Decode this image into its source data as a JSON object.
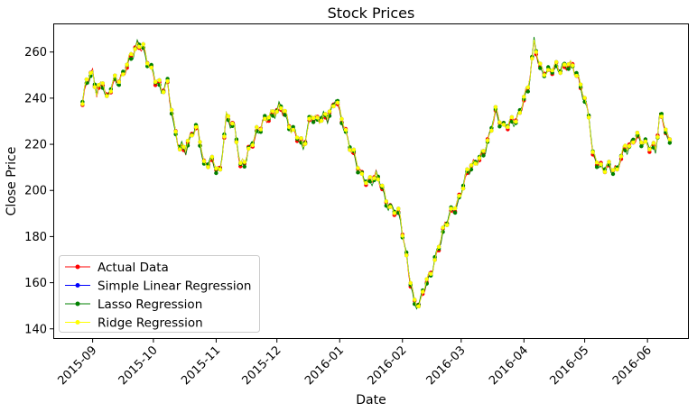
{
  "chart_data": {
    "type": "line",
    "title": "Stock Prices",
    "xlabel": "Date",
    "ylabel": "Close Price",
    "xlim": [
      "2015-08-13",
      "2016-06-21"
    ],
    "ylim": [
      136,
      272
    ],
    "grid": false,
    "legend_position": "bottom-left",
    "x_ticks": [
      "2015-09",
      "2015-10",
      "2015-11",
      "2015-12",
      "2016-01",
      "2016-02",
      "2016-03",
      "2016-04",
      "2016-05",
      "2016-06"
    ],
    "y_ticks": [
      140,
      160,
      180,
      200,
      220,
      240,
      260
    ],
    "series": [
      {
        "name": "Actual Data",
        "color": "#ff0000"
      },
      {
        "name": "Simple Linear Regression",
        "color": "#0000ff"
      },
      {
        "name": "Lasso Regression",
        "color": "#008000"
      },
      {
        "name": "Ridge Regression",
        "color": "#ffff00"
      }
    ],
    "anchors": [
      [
        "2015-08-27",
        237
      ],
      [
        "2015-08-29",
        246
      ],
      [
        "2015-09-01",
        251
      ],
      [
        "2015-09-03",
        242
      ],
      [
        "2015-09-06",
        248
      ],
      [
        "2015-09-08",
        240
      ],
      [
        "2015-09-12",
        246
      ],
      [
        "2015-09-16",
        251
      ],
      [
        "2015-09-20",
        258
      ],
      [
        "2015-09-23",
        262
      ],
      [
        "2015-09-26",
        261
      ],
      [
        "2015-09-29",
        256
      ],
      [
        "2015-10-02",
        247
      ],
      [
        "2015-10-05",
        243
      ],
      [
        "2015-10-08",
        246
      ],
      [
        "2015-10-11",
        230
      ],
      [
        "2015-10-14",
        218
      ],
      [
        "2015-10-17",
        216
      ],
      [
        "2015-10-20",
        226
      ],
      [
        "2015-10-23",
        227
      ],
      [
        "2015-10-26",
        211
      ],
      [
        "2015-10-30",
        211
      ],
      [
        "2015-11-03",
        210
      ],
      [
        "2015-11-06",
        231
      ],
      [
        "2015-11-10",
        227
      ],
      [
        "2015-11-13",
        210
      ],
      [
        "2015-11-17",
        218
      ],
      [
        "2015-11-20",
        221
      ],
      [
        "2015-11-24",
        230
      ],
      [
        "2015-11-28",
        233
      ],
      [
        "2015-12-02",
        235
      ],
      [
        "2015-12-06",
        231
      ],
      [
        "2015-12-10",
        225
      ],
      [
        "2015-12-14",
        218
      ],
      [
        "2015-12-18",
        232
      ],
      [
        "2015-12-22",
        232
      ],
      [
        "2015-12-26",
        230
      ],
      [
        "2015-12-30",
        240
      ],
      [
        "2016-01-03",
        229
      ],
      [
        "2016-01-07",
        215
      ],
      [
        "2016-01-11",
        209
      ],
      [
        "2016-01-15",
        203
      ],
      [
        "2016-01-19",
        206
      ],
      [
        "2016-01-23",
        198
      ],
      [
        "2016-01-27",
        192
      ],
      [
        "2016-01-31",
        187
      ],
      [
        "2016-02-04",
        165
      ],
      [
        "2016-02-07",
        152
      ],
      [
        "2016-02-10",
        151
      ],
      [
        "2016-02-14",
        162
      ],
      [
        "2016-02-18",
        173
      ],
      [
        "2016-02-22",
        185
      ],
      [
        "2016-02-26",
        190
      ],
      [
        "2016-03-02",
        203
      ],
      [
        "2016-03-06",
        210
      ],
      [
        "2016-03-10",
        213
      ],
      [
        "2016-03-14",
        222
      ],
      [
        "2016-03-18",
        232
      ],
      [
        "2016-03-22",
        228
      ],
      [
        "2016-03-26",
        230
      ],
      [
        "2016-03-30",
        232
      ],
      [
        "2016-04-03",
        245
      ],
      [
        "2016-04-06",
        265
      ],
      [
        "2016-04-09",
        252
      ],
      [
        "2016-04-13",
        250
      ],
      [
        "2016-04-17",
        255
      ],
      [
        "2016-04-21",
        252
      ],
      [
        "2016-04-25",
        254
      ],
      [
        "2016-04-29",
        246
      ],
      [
        "2016-05-03",
        233
      ],
      [
        "2016-05-05",
        213
      ],
      [
        "2016-05-09",
        211
      ],
      [
        "2016-05-13",
        210
      ],
      [
        "2016-05-17",
        208
      ],
      [
        "2016-05-21",
        219
      ],
      [
        "2016-05-25",
        222
      ],
      [
        "2016-05-29",
        221
      ],
      [
        "2016-06-02",
        219
      ],
      [
        "2016-06-05",
        219
      ],
      [
        "2016-06-07",
        232
      ],
      [
        "2016-06-09",
        228
      ],
      [
        "2016-06-11",
        221
      ],
      [
        "2016-06-13",
        222
      ]
    ]
  }
}
